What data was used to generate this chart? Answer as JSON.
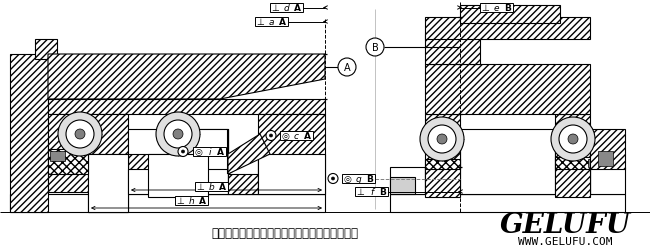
{
  "title": "单级谐波传动组件安装时的位置公差要求示意图",
  "brand": "GELUFU",
  "website": "WWW.GELUFU.COM",
  "bg_color": "#ffffff",
  "fig_width": 6.5,
  "fig_height": 2.53,
  "dpi": 100,
  "title_fontsize": 8.5,
  "brand_fontsize": 20,
  "web_fontsize": 8
}
